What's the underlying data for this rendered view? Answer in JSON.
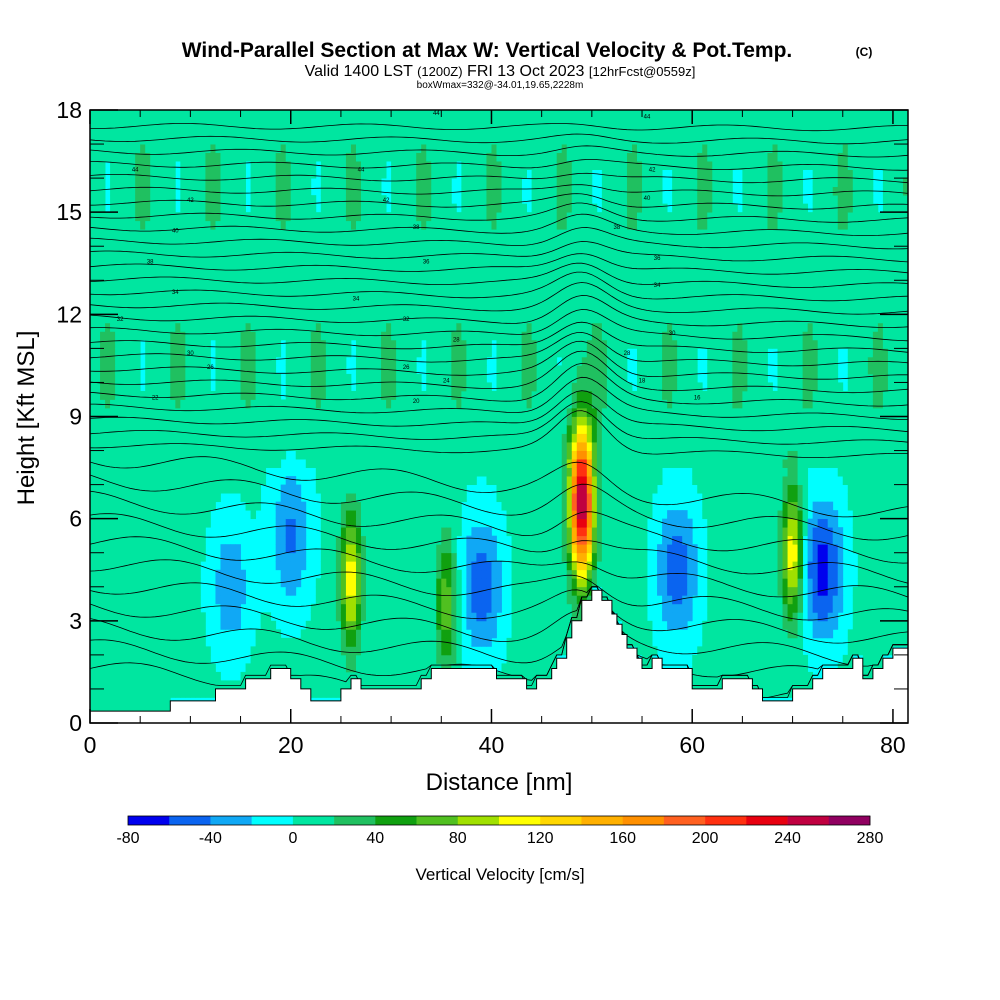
{
  "title": {
    "main": "Wind-Parallel Section at Max W: Vertical Velocity & Pot.Temp.",
    "copyright": "(C)",
    "valid_prefix": "Valid 1400 LST",
    "valid_utc": "(1200Z)",
    "valid_date": "FRI 13 Oct 2023",
    "forecast": "[12hrFcst@0559z]",
    "boxmax": "boxWmax=332@-34.01,19.65,2228m"
  },
  "chart_data": {
    "type": "heatmap",
    "xlabel": "Distance [nm]",
    "ylabel": "Height [Kft MSL]",
    "xlim": [
      0,
      81.5
    ],
    "ylim": [
      0,
      18
    ],
    "xticks": [
      "0",
      "20",
      "40",
      "60",
      "80"
    ],
    "yticks": [
      "0",
      "3",
      "6",
      "9",
      "12",
      "15",
      "18"
    ],
    "grid": false,
    "colorbar": {
      "label": "Vertical Velocity [cm/s]",
      "ticks": [
        "-80",
        "-40",
        "0",
        "40",
        "80",
        "120",
        "160",
        "200",
        "240",
        "280"
      ],
      "levels": [
        -80,
        -60,
        -40,
        -20,
        0,
        20,
        40,
        60,
        80,
        100,
        120,
        140,
        160,
        180,
        200,
        220,
        240,
        260,
        280
      ],
      "colors": [
        "#0000ee",
        "#0a64f0",
        "#10a8f5",
        "#00ffff",
        "#00e6a0",
        "#20c060",
        "#10a010",
        "#50c020",
        "#a0e000",
        "#ffff00",
        "#ffd700",
        "#ffb000",
        "#ff9000",
        "#ff6020",
        "#ff3010",
        "#e80010",
        "#c00040",
        "#900060"
      ]
    },
    "terrain_nm_kft": [
      [
        0,
        0.35
      ],
      [
        8,
        0.35
      ],
      [
        8,
        0.65
      ],
      [
        12.5,
        0.65
      ],
      [
        12.5,
        1.0
      ],
      [
        15.5,
        1.0
      ],
      [
        15.5,
        1.3
      ],
      [
        18,
        1.3
      ],
      [
        18,
        1.6
      ],
      [
        20,
        1.6
      ],
      [
        20,
        1.3
      ],
      [
        21,
        1.3
      ],
      [
        21,
        1.0
      ],
      [
        22,
        1.0
      ],
      [
        22,
        0.65
      ],
      [
        25,
        0.65
      ],
      [
        25,
        1.0
      ],
      [
        26,
        1.0
      ],
      [
        26,
        1.3
      ],
      [
        27,
        1.3
      ],
      [
        27,
        1.0
      ],
      [
        33,
        1.0
      ],
      [
        33,
        1.3
      ],
      [
        34,
        1.3
      ],
      [
        34,
        1.6
      ],
      [
        40.5,
        1.6
      ],
      [
        40.5,
        1.3
      ],
      [
        43.5,
        1.3
      ],
      [
        43.5,
        1.0
      ],
      [
        44.5,
        1.0
      ],
      [
        44.5,
        1.3
      ],
      [
        46,
        1.3
      ],
      [
        46,
        1.6
      ],
      [
        46.5,
        1.6
      ],
      [
        46.5,
        1.9
      ],
      [
        47.5,
        1.9
      ],
      [
        47.5,
        2.5
      ],
      [
        48,
        2.5
      ],
      [
        48,
        3.0
      ],
      [
        49,
        3.0
      ],
      [
        49,
        3.6
      ],
      [
        50,
        3.6
      ],
      [
        50,
        3.9
      ],
      [
        51,
        3.9
      ],
      [
        51,
        3.6
      ],
      [
        52,
        3.6
      ],
      [
        52,
        3.2
      ],
      [
        52.5,
        3.2
      ],
      [
        52.5,
        2.9
      ],
      [
        53,
        2.9
      ],
      [
        53,
        2.6
      ],
      [
        53.5,
        2.6
      ],
      [
        53.5,
        2.2
      ],
      [
        54.5,
        2.2
      ],
      [
        54.5,
        1.9
      ],
      [
        55,
        1.9
      ],
      [
        55,
        1.6
      ],
      [
        56,
        1.6
      ],
      [
        56,
        1.9
      ],
      [
        57,
        1.9
      ],
      [
        57,
        1.6
      ],
      [
        60,
        1.6
      ],
      [
        60,
        1.0
      ],
      [
        63,
        1.0
      ],
      [
        63,
        1.3
      ],
      [
        66,
        1.3
      ],
      [
        66,
        1.0
      ],
      [
        67,
        1.0
      ],
      [
        67,
        0.65
      ],
      [
        70,
        0.65
      ],
      [
        70,
        1.0
      ],
      [
        72,
        1.0
      ],
      [
        72,
        1.3
      ],
      [
        73,
        1.3
      ],
      [
        73,
        1.6
      ],
      [
        76,
        1.6
      ],
      [
        76,
        1.9
      ],
      [
        77,
        1.9
      ],
      [
        77,
        1.3
      ],
      [
        78,
        1.3
      ],
      [
        78,
        1.6
      ],
      [
        79,
        1.6
      ],
      [
        79,
        1.9
      ],
      [
        80,
        1.9
      ],
      [
        80,
        2.2
      ],
      [
        81.5,
        2.2
      ]
    ],
    "theta_contour_labels": [
      "44",
      "44",
      "44",
      "44",
      "42",
      "42",
      "42",
      "40",
      "40",
      "38",
      "38",
      "38",
      "36",
      "36",
      "34",
      "34",
      "34",
      "32",
      "32",
      "30",
      "30",
      "28",
      "28",
      "26",
      "26",
      "24",
      "22",
      "20",
      "18",
      "16"
    ],
    "w_cells_cm_s": [
      {
        "x": 26,
        "z": 4.2,
        "w": 110
      },
      {
        "x": 35.5,
        "z": 3.5,
        "w": 70
      },
      {
        "x": 49,
        "z": 6.5,
        "w": 260
      },
      {
        "x": 70,
        "z": 5,
        "w": 115
      },
      {
        "x": 20,
        "z": 5.5,
        "w": -50
      },
      {
        "x": 14,
        "z": 4,
        "w": -40
      },
      {
        "x": 39,
        "z": 4,
        "w": -60
      },
      {
        "x": 58.5,
        "z": 4.5,
        "w": -60
      },
      {
        "x": 73,
        "z": 4.5,
        "w": -75
      }
    ]
  }
}
